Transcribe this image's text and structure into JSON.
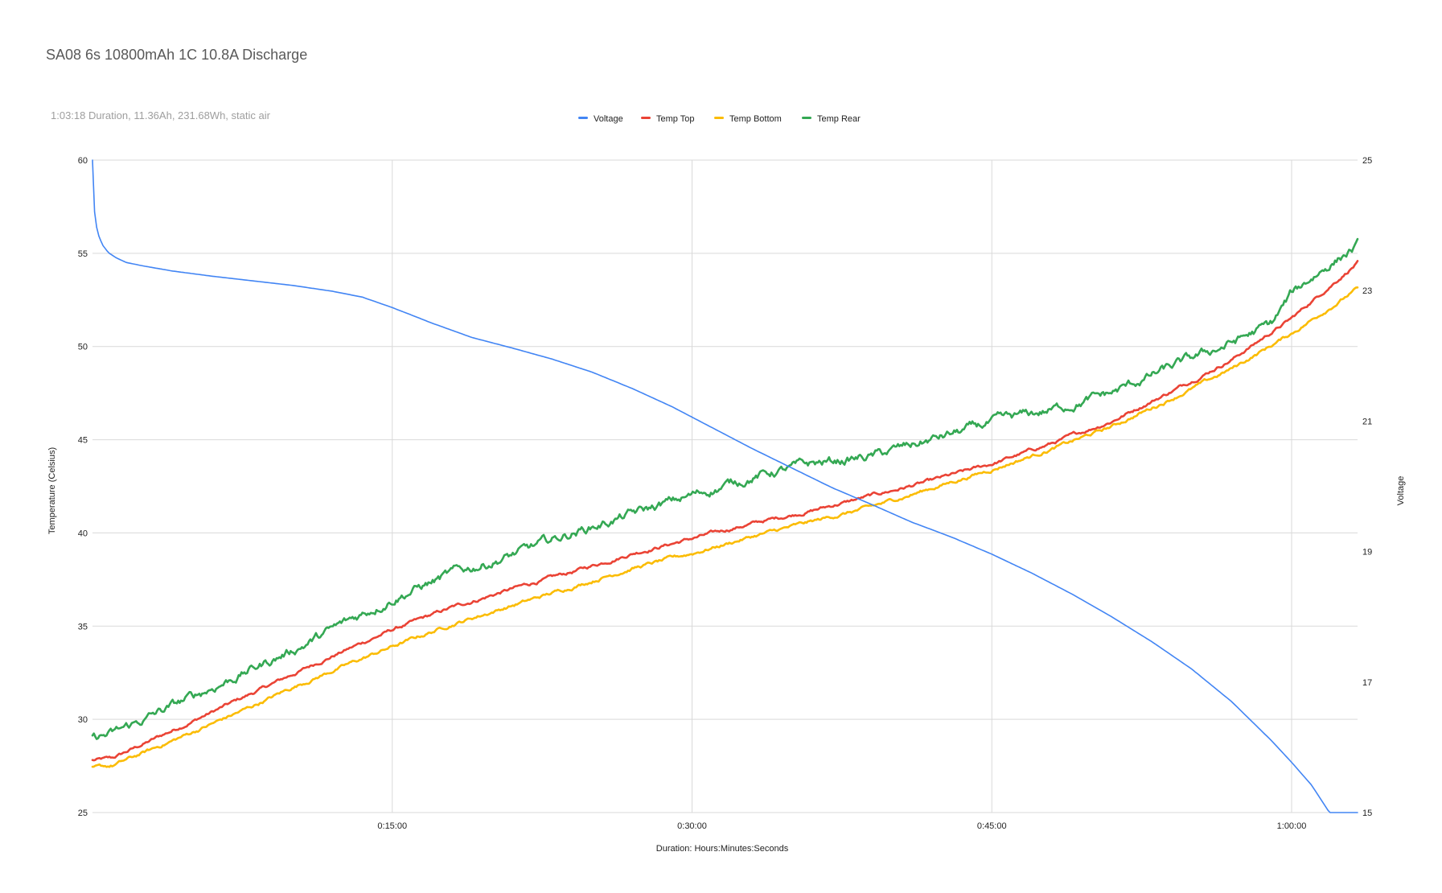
{
  "chart_data": {
    "type": "line",
    "title": "SA08 6s 10800mAh 1C 10.8A Discharge",
    "subtitle": "1:03:18 Duration, 11.36Ah, 231.68Wh, static air",
    "xlabel": "Duration: Hours:Minutes:Seconds",
    "ylabel_left": "Temperature (Celsius)",
    "ylabel_right": "Voltage",
    "x_unit": "minutes",
    "xlim": [
      0,
      63.3
    ],
    "x_ticks": [
      {
        "value": 15,
        "label": "0:15:00"
      },
      {
        "value": 30,
        "label": "0:30:00"
      },
      {
        "value": 45,
        "label": "0:45:00"
      },
      {
        "value": 60,
        "label": "1:00:00"
      }
    ],
    "ylim_left": [
      25,
      60
    ],
    "y_ticks_left": [
      "25",
      "30",
      "35",
      "40",
      "45",
      "50",
      "55",
      "60"
    ],
    "ylim_right": [
      15,
      25
    ],
    "y_ticks_right": [
      "15",
      "17",
      "19",
      "21",
      "23",
      "25"
    ],
    "grid": true,
    "legend_position": "top",
    "series": [
      {
        "name": "Voltage",
        "color": "#4285f4",
        "axis": "right",
        "noise": 0,
        "x": [
          0,
          0.05,
          0.15,
          0.3,
          0.5,
          0.8,
          1.2,
          1.7,
          2.5,
          4,
          6,
          8,
          10,
          12,
          13.5,
          15,
          17,
          19,
          21,
          23,
          25,
          27,
          29,
          31,
          33,
          35,
          37,
          39,
          41,
          43,
          45,
          47,
          49,
          51,
          53,
          55,
          57,
          59,
          60,
          61,
          62,
          63.3
        ],
        "values": [
          25,
          24.4,
          24.05,
          23.85,
          23.7,
          23.58,
          23.5,
          23.43,
          23.38,
          23.3,
          23.22,
          23.15,
          23.08,
          22.99,
          22.9,
          22.74,
          22.5,
          22.28,
          22.12,
          21.95,
          21.75,
          21.5,
          21.22,
          20.9,
          20.58,
          20.28,
          19.98,
          19.72,
          19.45,
          19.22,
          18.96,
          18.67,
          18.35,
          18.0,
          17.62,
          17.2,
          16.7,
          16.1,
          15.77,
          15.42,
          14.95,
          14.57
        ]
      },
      {
        "name": "Temp Top",
        "color": "#ea4335",
        "axis": "left",
        "noise": 0.06,
        "x": [
          0,
          1,
          3,
          5,
          8,
          10,
          12,
          15,
          18,
          21,
          24,
          27,
          30,
          33,
          36,
          39,
          42,
          45,
          48,
          51,
          54,
          57,
          60,
          63.3
        ],
        "values": [
          27.8,
          27.9,
          28.9,
          29.9,
          31.4,
          32.4,
          33.4,
          34.8,
          36.0,
          37.0,
          37.9,
          38.9,
          39.7,
          40.5,
          41.2,
          42.0,
          42.8,
          43.7,
          44.8,
          46.0,
          47.6,
          49.3,
          51.5,
          54.5
        ]
      },
      {
        "name": "Temp Bottom",
        "color": "#fbbc04",
        "axis": "left",
        "noise": 0.06,
        "x": [
          0,
          1,
          3,
          5,
          8,
          10,
          12,
          15,
          18,
          21,
          24,
          27,
          30,
          33,
          36,
          39,
          42,
          45,
          48,
          51,
          54,
          57,
          60,
          63.3
        ],
        "values": [
          27.4,
          27.5,
          28.4,
          29.3,
          30.7,
          31.7,
          32.6,
          33.9,
          35.1,
          36.1,
          37.1,
          38.1,
          38.9,
          39.8,
          40.6,
          41.4,
          42.4,
          43.4,
          44.5,
          45.7,
          47.2,
          48.8,
          50.7,
          53.1
        ]
      },
      {
        "name": "Temp Rear",
        "color": "#34a853",
        "axis": "left",
        "noise": 0.16,
        "x": [
          0,
          1,
          3,
          5,
          8,
          10,
          12,
          15,
          18,
          21,
          24,
          27,
          30,
          33,
          36,
          39,
          42,
          45,
          48,
          51,
          54,
          57,
          59,
          60,
          61,
          62,
          63.3
        ],
        "values": [
          29.0,
          29.2,
          30.2,
          31.2,
          32.7,
          33.7,
          34.8,
          36.5,
          37.8,
          38.8,
          40.0,
          41.0,
          42.0,
          43.0,
          43.7,
          44.1,
          45.0,
          45.9,
          46.6,
          47.5,
          48.9,
          50.2,
          51.2,
          52.8,
          53.7,
          54.5,
          55.4
        ]
      }
    ]
  }
}
